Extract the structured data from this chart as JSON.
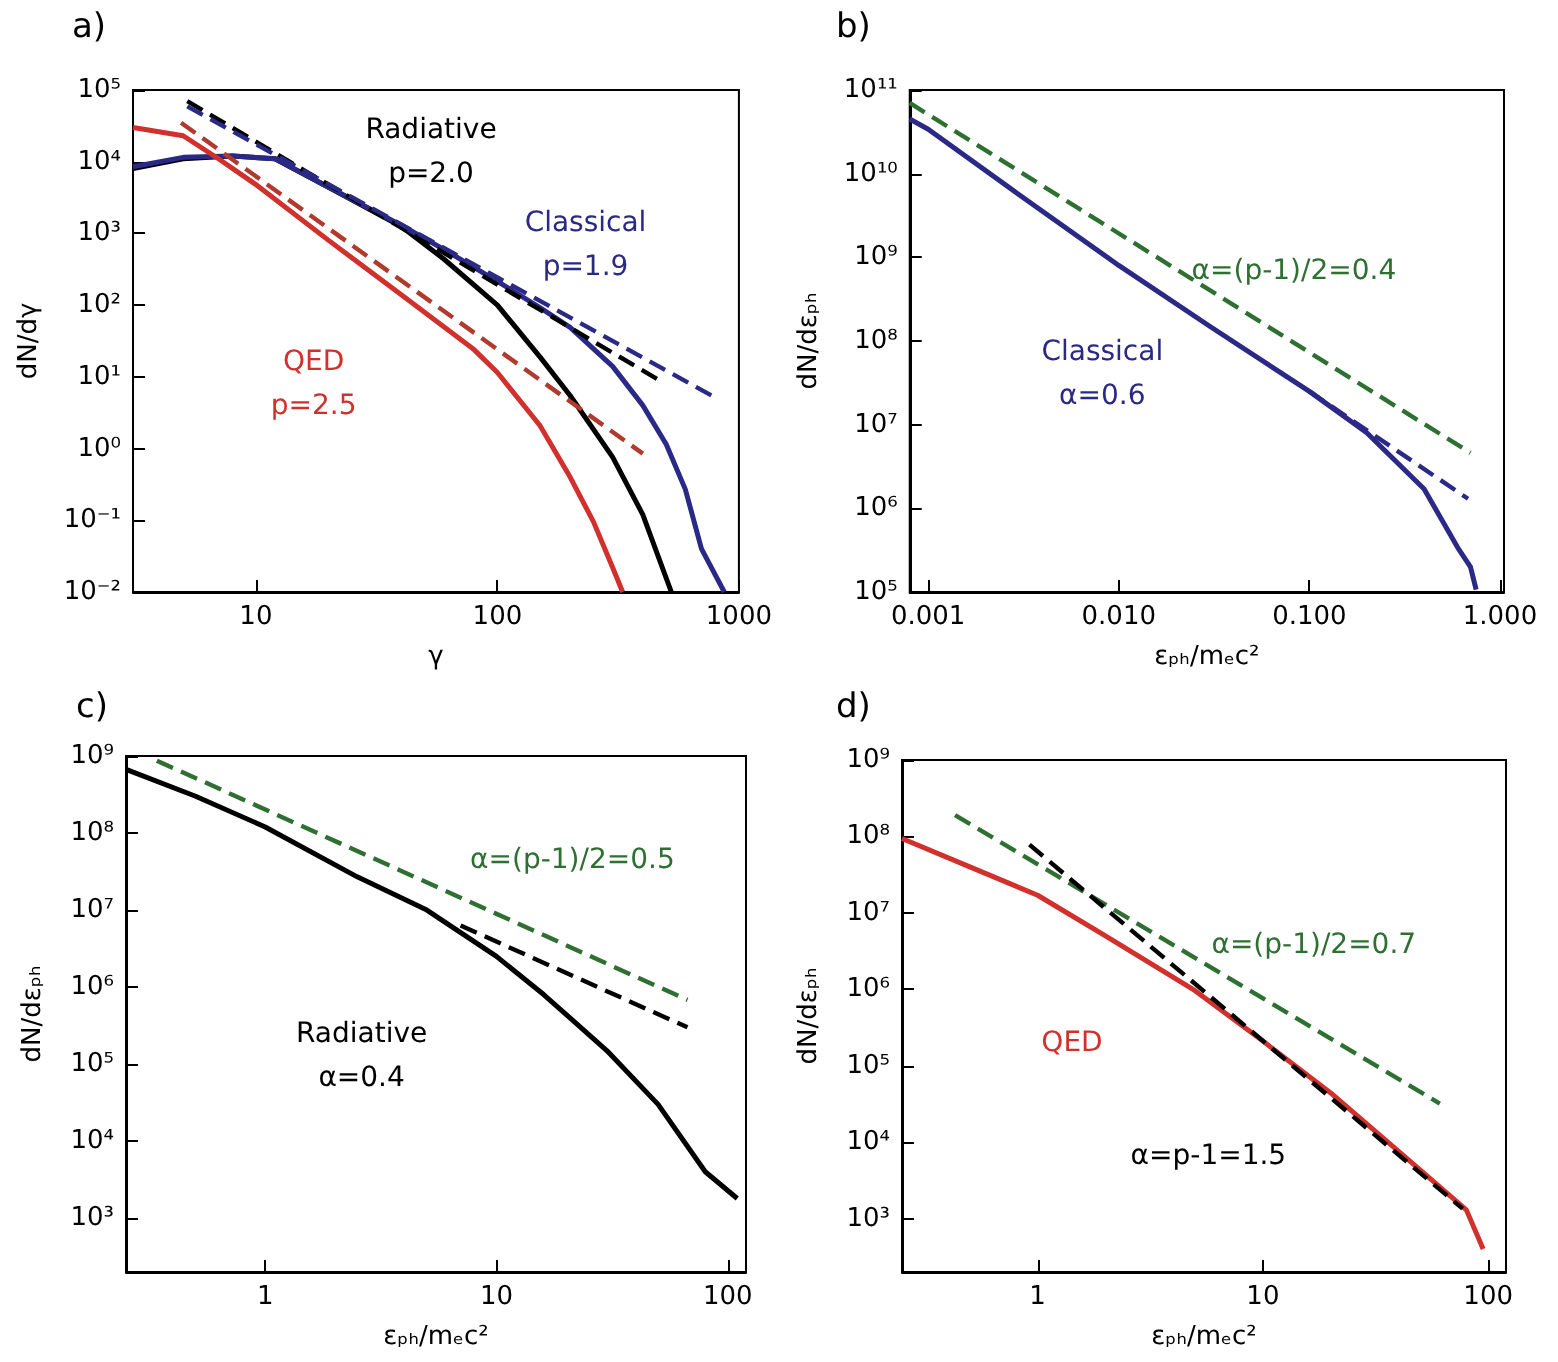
{
  "chart_data": [
    {
      "type": "line",
      "title": "a)",
      "xlabel": "γ",
      "ylabel": "dN/dγ",
      "log": "xy",
      "marker": "none",
      "line_style": "solid",
      "xlim": [
        3.1,
        1000
      ],
      "xticks": [
        10,
        100,
        1000
      ],
      "ylim": [
        0.01,
        100000
      ],
      "yticks": [
        {
          "value": 0.01,
          "label": "10⁻²"
        },
        {
          "value": 0.1,
          "label": "10⁻¹"
        },
        {
          "value": 1,
          "label": "10⁰"
        },
        {
          "value": 10,
          "label": "10¹"
        },
        {
          "value": 100,
          "label": "10²"
        },
        {
          "value": 1000,
          "label": "10³"
        },
        {
          "value": 10000,
          "label": "10⁴"
        },
        {
          "value": 100000,
          "label": "10⁵"
        }
      ],
      "series": [
        {
          "color": "#000000",
          "x": [
            3.1,
            5,
            8,
            12,
            20,
            40,
            60,
            100,
            150,
            200,
            300,
            400,
            525
          ],
          "values": [
            8000,
            11000,
            12000,
            11000,
            4400,
            1250,
            440,
            100,
            19,
            5.5,
            0.76,
            0.12,
            0.01
          ]
        },
        {
          "color": "#2a2a86",
          "x": [
            3.1,
            5,
            8,
            12,
            20,
            40,
            60,
            100,
            150,
            200,
            300,
            400,
            500,
            600,
            700,
            870
          ],
          "values": [
            8500,
            11500,
            12000,
            11000,
            4400,
            1300,
            600,
            215,
            92,
            49,
            14,
            4,
            1.15,
            0.27,
            0.04,
            0.01
          ]
        },
        {
          "color": "#d0312d",
          "x": [
            3.1,
            5,
            7,
            10,
            20,
            40,
            80,
            100,
            150,
            200,
            250,
            300,
            330
          ],
          "values": [
            30000,
            23000,
            11000,
            4800,
            800,
            140,
            24,
            11.5,
            2.1,
            0.4,
            0.095,
            0.022,
            0.01
          ]
        },
        {
          "color": "#000000",
          "line_style": "dashed",
          "x": [
            5.2,
            480
          ],
          "values": [
            70000,
            8.5
          ]
        },
        {
          "color": "#2a2a86",
          "line_style": "dashed",
          "x": [
            5.2,
            770
          ],
          "values": [
            59000,
            5.5
          ]
        },
        {
          "color": "#b03a2e",
          "line_style": "dashed",
          "x": [
            4.9,
            400
          ],
          "values": [
            35000,
            0.85
          ]
        }
      ],
      "annotations": [
        "Radiative\np=2.0",
        "Classical\np=1.9",
        "QED\np=2.5"
      ]
    },
    {
      "type": "line",
      "title": "b)",
      "xlabel": "εₚₕ/mₑc²",
      "ylabel": "dN/dεₚₕ",
      "log": "xy",
      "marker": "none",
      "line_style": "solid",
      "xlim": [
        0.0008,
        1.05
      ],
      "xticks": [
        0.001,
        {
          "value": 0.01,
          "label": "0.010"
        },
        {
          "value": 0.1,
          "label": "0.100"
        },
        {
          "value": 1,
          "label": "1.000"
        }
      ],
      "ylim": [
        100000,
        100000000000
      ],
      "yticks": [
        {
          "value": 100000,
          "label": "10⁵"
        },
        {
          "value": 1000000,
          "label": "10⁶"
        },
        {
          "value": 10000000,
          "label": "10⁷"
        },
        {
          "value": 100000000,
          "label": "10⁸"
        },
        {
          "value": 1000000000,
          "label": "10⁹"
        },
        {
          "value": 10000000000,
          "label": "10¹⁰"
        },
        {
          "value": 100000000000,
          "label": "10¹¹"
        }
      ],
      "series": [
        {
          "color": "#2a2a86",
          "x": [
            0.0008,
            0.001,
            0.003,
            0.01,
            0.03,
            0.1,
            0.2,
            0.4,
            0.6,
            0.7,
            0.75
          ],
          "values": [
            45000000000,
            34000000000,
            5600000000,
            800000000,
            150000000,
            25000000,
            8000000,
            1700000,
            340000,
            200000,
            107000
          ]
        },
        {
          "color": "#2e7031",
          "line_style": "dashed",
          "x": [
            0.0008,
            0.7
          ],
          "values": [
            70000000000,
            4600000
          ]
        },
        {
          "color": "#2a2a86",
          "line_style": "dashed",
          "x": [
            0.1,
            0.68
          ],
          "values": [
            25000000,
            1300000
          ]
        }
      ],
      "annotations": [
        "Classical\nα=0.6",
        "α=(p-1)/2=0.4"
      ]
    },
    {
      "type": "line",
      "title": "c)",
      "xlabel": "εₚₕ/mₑc²",
      "ylabel": "dN/dεₚₕ",
      "log": "xy",
      "marker": "none",
      "line_style": "solid",
      "xlim": [
        0.25,
        120
      ],
      "xticks": [
        1,
        10,
        100
      ],
      "ylim": [
        200,
        1000000000
      ],
      "yticks": [
        {
          "value": 1000,
          "label": "10³"
        },
        {
          "value": 10000,
          "label": "10⁴"
        },
        {
          "value": 100000,
          "label": "10⁵"
        },
        {
          "value": 1000000,
          "label": "10⁶"
        },
        {
          "value": 10000000,
          "label": "10⁷"
        },
        {
          "value": 100000000,
          "label": "10⁸"
        },
        {
          "value": 1000000000,
          "label": "10⁹"
        }
      ],
      "series": [
        {
          "color": "#000000",
          "x": [
            0.25,
            0.5,
            1,
            2.5,
            5,
            10,
            16,
            30,
            50,
            80,
            110
          ],
          "values": [
            670000000,
            300000000,
            120000000,
            27000000,
            10000000,
            2500000,
            800000,
            150000,
            30000,
            4000,
            1800
          ]
        },
        {
          "color": "#2e7031",
          "line_style": "dashed",
          "x": [
            0.34,
            67
          ],
          "values": [
            870000000,
            680000
          ]
        },
        {
          "color": "#000000",
          "line_style": "dashed",
          "x": [
            7,
            67
          ],
          "values": [
            6300000,
            300000
          ]
        }
      ],
      "annotations": [
        "Radiative\nα=0.4",
        "α=(p-1)/2=0.5"
      ]
    },
    {
      "type": "line",
      "title": "d)",
      "xlabel": "εₚₕ/mₑc²",
      "ylabel": "dN/dεₚₕ",
      "log": "xy",
      "marker": "none",
      "line_style": "solid",
      "xlim": [
        0.25,
        120
      ],
      "xticks": [
        1,
        10,
        100
      ],
      "ylim": [
        200,
        1000000000
      ],
      "yticks": [
        {
          "value": 1000,
          "label": "10³"
        },
        {
          "value": 10000,
          "label": "10⁴"
        },
        {
          "value": 100000,
          "label": "10⁵"
        },
        {
          "value": 1000000,
          "label": "10⁶"
        },
        {
          "value": 10000000,
          "label": "10⁷"
        },
        {
          "value": 100000000,
          "label": "10⁸"
        },
        {
          "value": 1000000000,
          "label": "10⁹"
        }
      ],
      "series": [
        {
          "color": "#d0312d",
          "x": [
            0.25,
            0.5,
            1,
            2,
            5,
            10,
            20,
            50,
            80,
            95
          ],
          "values": [
            94000000,
            40000000,
            17000000,
            5000000,
            960000,
            210000,
            44000,
            4300,
            1300,
            400
          ]
        },
        {
          "color": "#2e7031",
          "line_style": "dashed",
          "x": [
            0.43,
            61
          ],
          "values": [
            190000000,
            32000
          ]
        },
        {
          "color": "#000000",
          "line_style": "dashed",
          "x": [
            0.92,
            77
          ],
          "values": [
            78000000,
            1350
          ]
        }
      ],
      "annotations": [
        "QED",
        "α=(p-1)/2=0.7",
        "α=p-1=1.5"
      ]
    }
  ]
}
